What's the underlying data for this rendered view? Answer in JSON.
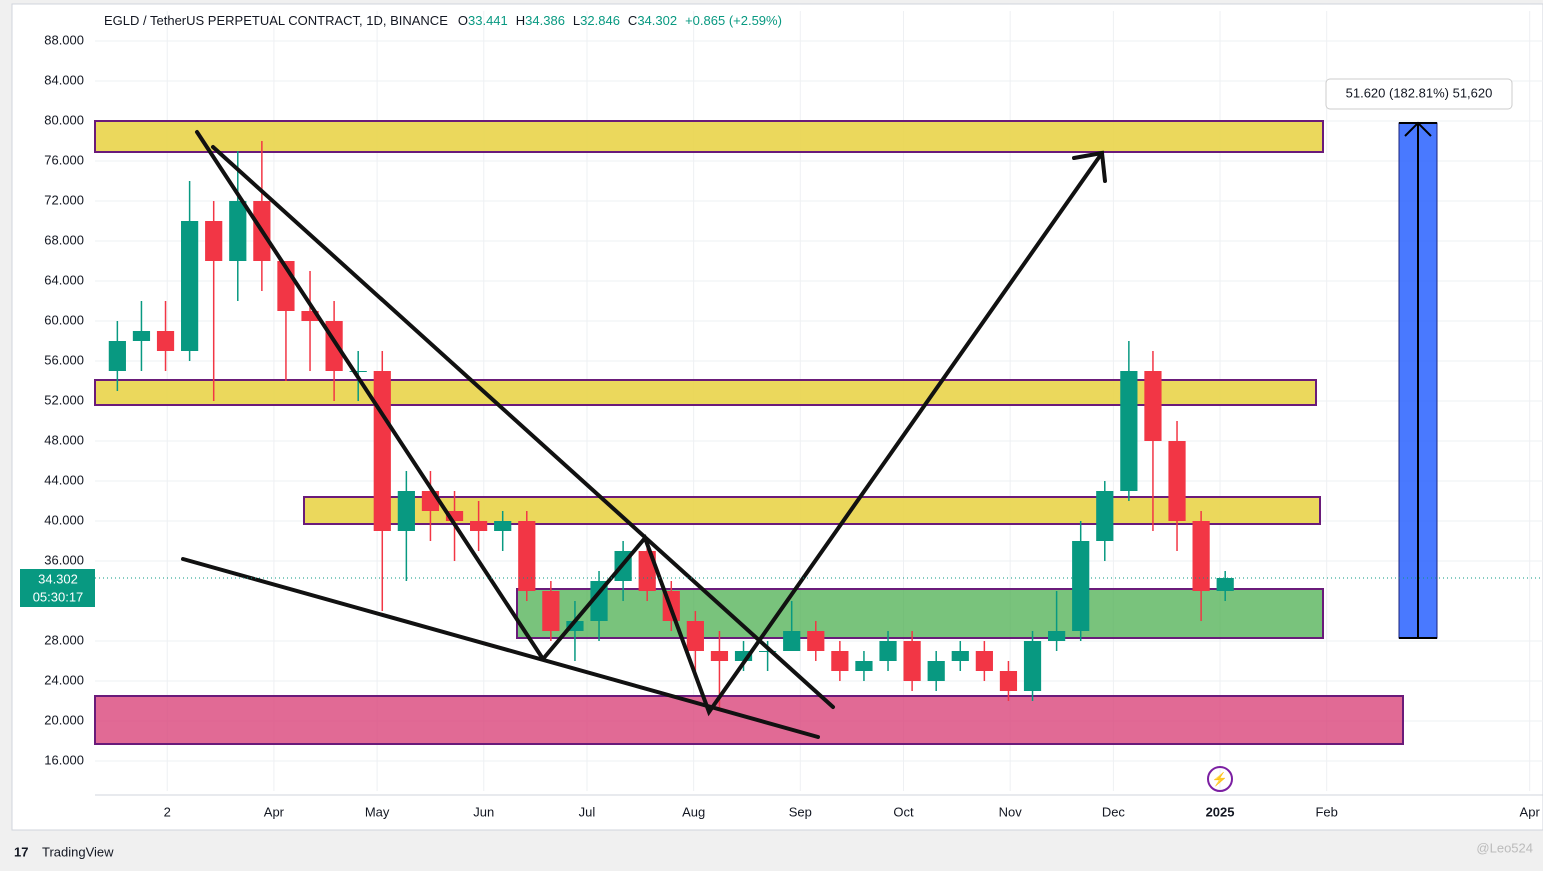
{
  "header": {
    "symbol": "EGLD / TetherUS PERPETUAL CONTRACT, 1D, BINANCE",
    "open_label": "O",
    "open": "33.441",
    "high_label": "H",
    "high": "34.386",
    "low_label": "L",
    "low": "32.846",
    "close_label": "C",
    "close": "34.302",
    "change": "+0.865 (+2.59%)"
  },
  "chart_data": {
    "type": "candlestick",
    "x": [
      "2024-02-12",
      "2024-02-19",
      "2024-02-26",
      "2024-03-04",
      "2024-03-11",
      "2024-03-18",
      "2024-03-25",
      "2024-04-01",
      "2024-04-08",
      "2024-04-15",
      "2024-04-22",
      "2024-04-29",
      "2024-05-06",
      "2024-05-13",
      "2024-05-20",
      "2024-05-27",
      "2024-06-03",
      "2024-06-10",
      "2024-06-17",
      "2024-06-24",
      "2024-07-01",
      "2024-07-08",
      "2024-07-15",
      "2024-07-22",
      "2024-07-29",
      "2024-08-05",
      "2024-08-12",
      "2024-08-19",
      "2024-08-26",
      "2024-09-02",
      "2024-09-09",
      "2024-09-16",
      "2024-09-23",
      "2024-09-30",
      "2024-10-07",
      "2024-10-14",
      "2024-10-21",
      "2024-10-28",
      "2024-11-04",
      "2024-11-11",
      "2024-11-18",
      "2024-11-25",
      "2024-12-02",
      "2024-12-09",
      "2024-12-16",
      "2024-12-23",
      "2024-12-30"
    ],
    "open": [
      55,
      58,
      59,
      57,
      70,
      66,
      72,
      66,
      61,
      60,
      55,
      55,
      39,
      43,
      41,
      40,
      39,
      40,
      33,
      29,
      30,
      34,
      37,
      33,
      30,
      27,
      26,
      27,
      27,
      29,
      27,
      25,
      26,
      28,
      24,
      26,
      27,
      25,
      23,
      28,
      29,
      38,
      43,
      55,
      48,
      40,
      33
    ],
    "high": [
      60,
      62,
      62,
      74,
      72,
      77,
      78,
      66,
      65,
      62,
      57,
      57,
      45,
      45,
      43,
      42,
      41,
      41,
      34,
      32,
      35,
      38,
      38,
      34,
      31,
      29,
      28,
      28,
      32,
      30,
      28,
      27,
      29,
      29,
      27,
      28,
      28,
      26,
      29,
      33,
      40,
      44,
      58,
      57,
      50,
      41,
      35
    ],
    "low": [
      53,
      55,
      55,
      56,
      52,
      62,
      63,
      54,
      55,
      52,
      52,
      31,
      34,
      38,
      36,
      37,
      37,
      32,
      28,
      26,
      28,
      32,
      32,
      29,
      25,
      21,
      25,
      25,
      27,
      26,
      24,
      24,
      25,
      23,
      23,
      25,
      24,
      22,
      22,
      27,
      28,
      36,
      42,
      39,
      37,
      30,
      32
    ],
    "close": [
      58,
      59,
      57,
      70,
      66,
      72,
      66,
      61,
      60,
      55,
      55,
      39,
      43,
      41,
      40,
      39,
      40,
      33,
      29,
      30,
      34,
      37,
      33,
      30,
      27,
      26,
      27,
      27,
      29,
      27,
      25,
      26,
      28,
      24,
      26,
      27,
      25,
      23,
      28,
      29,
      38,
      43,
      55,
      48,
      40,
      33,
      34.302
    ],
    "up_color": "#089981",
    "down_color": "#f23645",
    "ylim": [
      13,
      91
    ],
    "yticks": [
      {
        "value": 16,
        "label": "16.000"
      },
      {
        "value": 20,
        "label": "20.000"
      },
      {
        "value": 24,
        "label": "24.000"
      },
      {
        "value": 28,
        "label": "28.000"
      },
      {
        "value": 36,
        "label": "36.000"
      },
      {
        "value": 40,
        "label": "40.000"
      },
      {
        "value": 44,
        "label": "44.000"
      },
      {
        "value": 48,
        "label": "48.000"
      },
      {
        "value": 52,
        "label": "52.000"
      },
      {
        "value": 56,
        "label": "56.000"
      },
      {
        "value": 60,
        "label": "60.000"
      },
      {
        "value": 64,
        "label": "64.000"
      },
      {
        "value": 68,
        "label": "68.000"
      },
      {
        "value": 72,
        "label": "72.000"
      },
      {
        "value": 76,
        "label": "76.000"
      },
      {
        "value": 80,
        "label": "80.000"
      },
      {
        "value": 84,
        "label": "84.000"
      },
      {
        "value": 88,
        "label": "88.000"
      }
    ],
    "xlim": [
      "2024-02-09",
      "2025-04-04"
    ],
    "xticks": [
      {
        "value": "2024-03-01",
        "label": "2"
      },
      {
        "value": "2024-04-01",
        "label": "Apr"
      },
      {
        "value": "2024-05-01",
        "label": "May"
      },
      {
        "value": "2024-06-01",
        "label": "Jun"
      },
      {
        "value": "2024-07-01",
        "label": "Jul"
      },
      {
        "value": "2024-08-01",
        "label": "Aug"
      },
      {
        "value": "2024-09-01",
        "label": "Sep"
      },
      {
        "value": "2024-10-01",
        "label": "Oct"
      },
      {
        "value": "2024-11-01",
        "label": "Nov"
      },
      {
        "value": "2024-12-01",
        "label": "Dec"
      },
      {
        "value": "2025-01-01",
        "label": "2025"
      },
      {
        "value": "2025-02-01",
        "label": "Feb"
      },
      {
        "value": "2025-04-01",
        "label": "Apr"
      }
    ],
    "grid": true,
    "last_price": 34.302,
    "countdown": "05:30:17"
  },
  "measure_label": "51.620 (182.81%) 51,620",
  "brand": "TradingView",
  "watermark": "@Leo524"
}
